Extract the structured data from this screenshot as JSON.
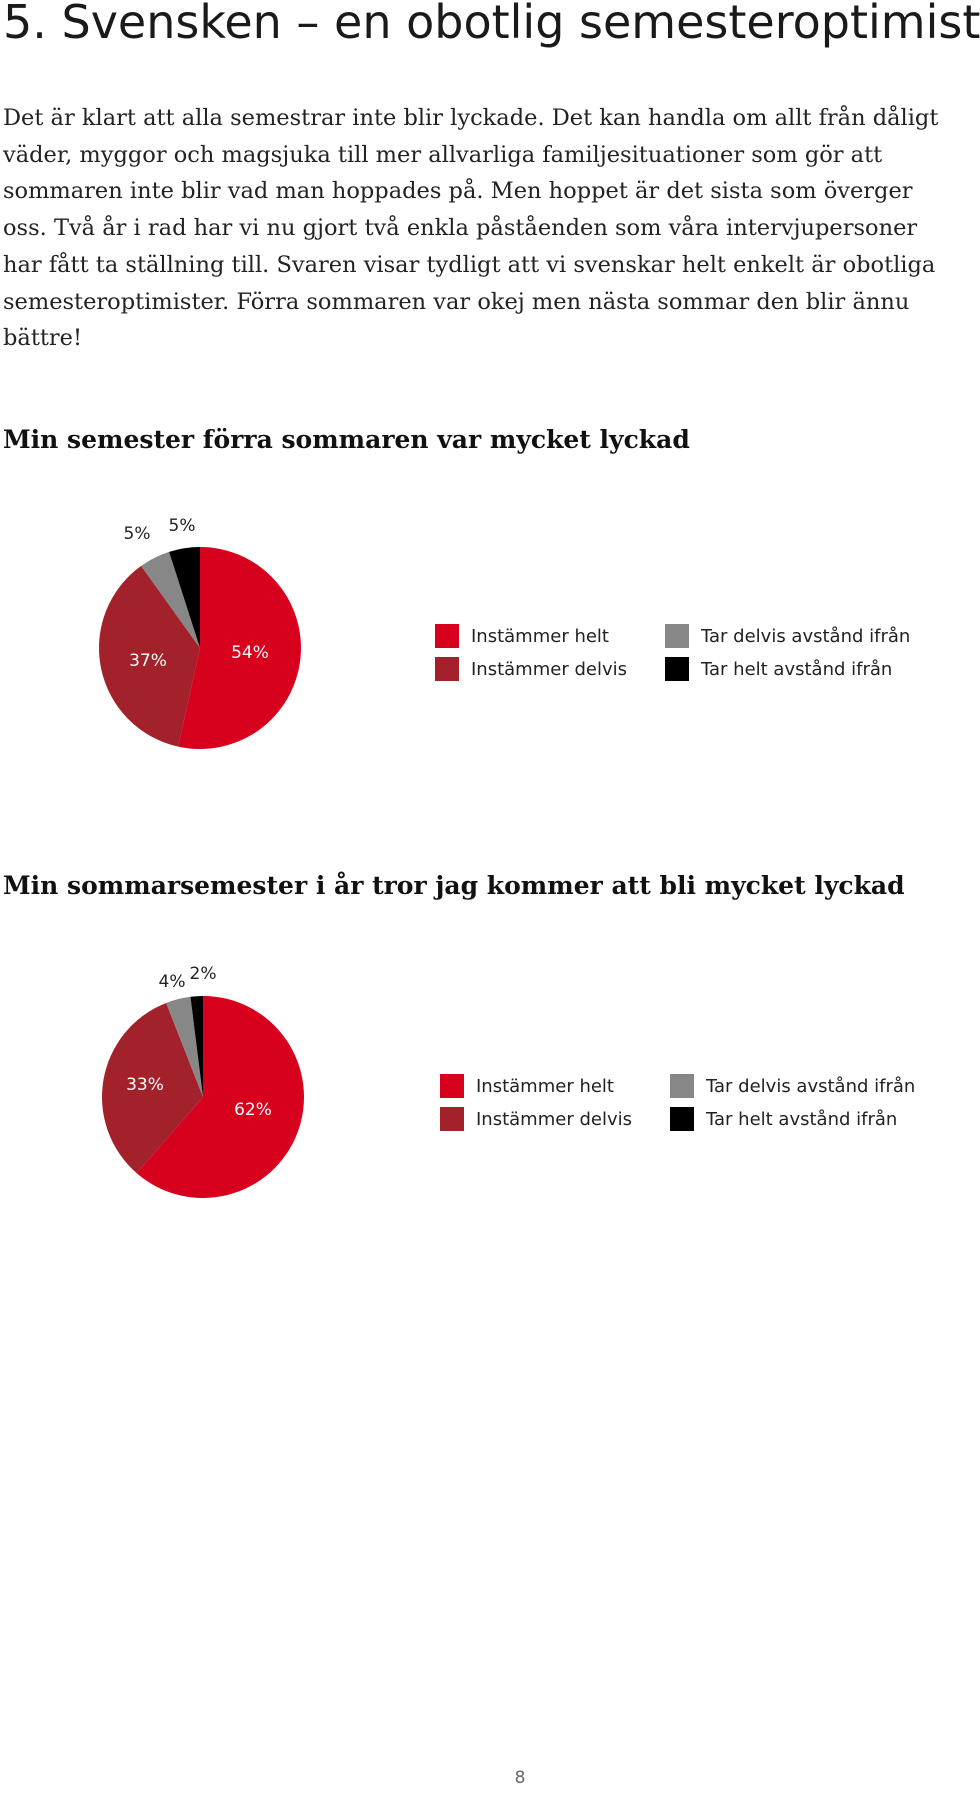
{
  "heading": "5. Svensken – en obotlig semesteroptimist",
  "intro": "Det är klart att alla semestrar inte blir lyckade. Det kan handla om allt från dåligt väder, myggor och magsjuka till mer allvarliga familjesituationer som gör att sommaren inte blir vad man hoppades på. Men hoppet är det sista som överger oss. Två år i rad har vi nu gjort två enkla påståenden som våra intervjupersoner har fått ta ställning till. Svaren visar tydligt att vi svenskar helt enkelt är obotliga semesteroptimister. Förra sommaren var okej men nästa sommar den blir ännu bättre!",
  "colors": {
    "instammer_helt": "#d7001d",
    "instammer_delvis": "#a3212a",
    "tar_delvis_avstand": "#878787",
    "tar_helt_avstand": "#000000"
  },
  "chart_data": [
    {
      "type": "pie",
      "title": "Min semester förra sommaren var mycket lyckad",
      "categories": [
        "Instämmer helt",
        "Instämmer delvis",
        "Tar delvis avstånd ifrån",
        "Tar helt avstånd ifrån"
      ],
      "values": [
        54,
        37,
        5,
        5
      ],
      "labels": [
        "54%",
        "37%",
        "5%",
        "5%"
      ],
      "legend_position": "right"
    },
    {
      "type": "pie",
      "title": "Min sommarsemester i år tror jag kommer att bli mycket lyckad",
      "categories": [
        "Instämmer helt",
        "Instämmer delvis",
        "Tar delvis avstånd ifrån",
        "Tar helt avstånd ifrån"
      ],
      "values": [
        62,
        33,
        4,
        2
      ],
      "labels": [
        "62%",
        "33%",
        "4%",
        "2%"
      ],
      "legend_position": "right"
    }
  ],
  "legend": {
    "instammer_helt": "Instämmer helt",
    "instammer_delvis": "Instämmer delvis",
    "tar_delvis_avstand": "Tar delvis avstånd ifrån",
    "tar_helt_avstand": "Tar helt avstånd ifrån"
  },
  "page_number": "8"
}
